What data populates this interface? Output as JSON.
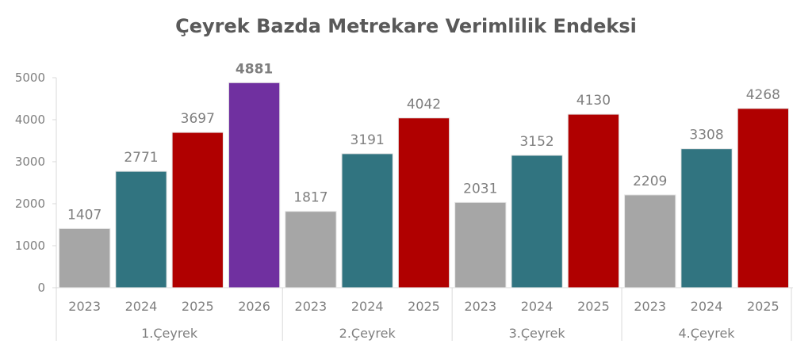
{
  "chart_data": {
    "type": "bar",
    "title": "Çeyrek Bazda Metrekare Verimlilik Endeksi",
    "xlabel": "",
    "ylabel": "",
    "ylim": [
      0,
      5000
    ],
    "yticks": [
      0,
      1000,
      2000,
      3000,
      4000,
      5000
    ],
    "grid": false,
    "legend": "none",
    "groups": [
      {
        "label": "1.Çeyrek",
        "bars": [
          {
            "year": "2023",
            "value": 1407,
            "color": "#a6a6a6"
          },
          {
            "year": "2024",
            "value": 2771,
            "color": "#317480"
          },
          {
            "year": "2025",
            "value": 3697,
            "color": "#b00000"
          },
          {
            "year": "2026",
            "value": 4881,
            "color": "#7030a0",
            "bold": true
          }
        ]
      },
      {
        "label": "2.Çeyrek",
        "bars": [
          {
            "year": "2023",
            "value": 1817,
            "color": "#a6a6a6"
          },
          {
            "year": "2024",
            "value": 3191,
            "color": "#317480"
          },
          {
            "year": "2025",
            "value": 4042,
            "color": "#b00000"
          }
        ]
      },
      {
        "label": "3.Çeyrek",
        "bars": [
          {
            "year": "2023",
            "value": 2031,
            "color": "#a6a6a6"
          },
          {
            "year": "2024",
            "value": 3152,
            "color": "#317480"
          },
          {
            "year": "2025",
            "value": 4130,
            "color": "#b00000"
          }
        ]
      },
      {
        "label": "4.Çeyrek",
        "bars": [
          {
            "year": "2023",
            "value": 2209,
            "color": "#a6a6a6"
          },
          {
            "year": "2024",
            "value": 3308,
            "color": "#317480"
          },
          {
            "year": "2025",
            "value": 4268,
            "color": "#b00000"
          }
        ]
      }
    ]
  }
}
